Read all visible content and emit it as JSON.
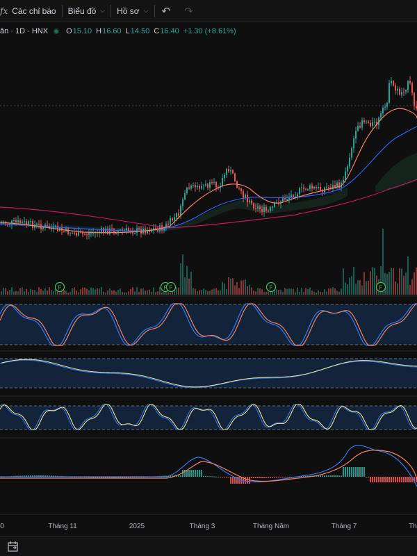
{
  "toolbar": {
    "indicators_label": "Các chỉ báo",
    "chart_label": "Biểu đồ",
    "profile_label": "Hồ sơ"
  },
  "legend": {
    "symbol": "ân · 1D · HNX",
    "open_key": "O",
    "open": "15.10",
    "high_key": "H",
    "high": "16.60",
    "low_key": "L",
    "low": "14.50",
    "close_key": "C",
    "close": "16.40",
    "change": "+1.30 (+8.61%)"
  },
  "xaxis": {
    "labels": [
      "0",
      "Tháng 11",
      "2025",
      "Tháng 3",
      "Tháng Năm",
      "Tháng 7",
      "Th"
    ]
  },
  "events": {
    "marker_label": "F"
  },
  "colors": {
    "up": "#26a69a",
    "down": "#ef5350",
    "ma_short": "#f7815b",
    "ma_mid": "#2962ff",
    "ma_long": "#c2185b",
    "osc_yellow": "#f5e58a",
    "osc_blue": "#3179f5"
  }
}
